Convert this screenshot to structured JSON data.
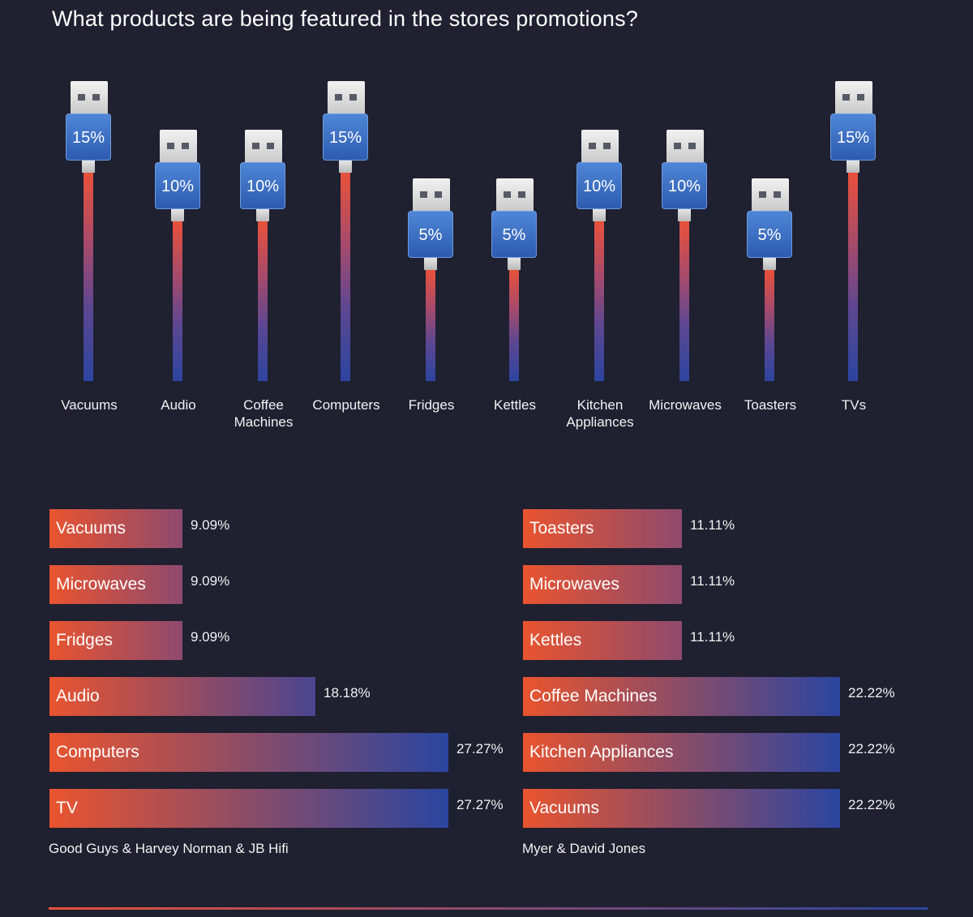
{
  "title": "What products are being featured in the stores promotions?",
  "chart_data": [
    {
      "type": "bar",
      "title": "What products are being featured in the stores promotions?",
      "categories": [
        "Vacuums",
        "Audio",
        "Coffee Machines",
        "Computers",
        "Fridges",
        "Kettles",
        "Kitchen Appliances",
        "Microwaves",
        "Toasters",
        "TVs"
      ],
      "category_labels": [
        [
          "Vacuums"
        ],
        [
          "Audio"
        ],
        [
          "Coffee",
          "Machines"
        ],
        [
          "Computers"
        ],
        [
          "Fridges"
        ],
        [
          "Kettles"
        ],
        [
          "Kitchen",
          "Appliances"
        ],
        [
          "Microwaves"
        ],
        [
          "Toasters"
        ],
        [
          "TVs"
        ]
      ],
      "values": [
        15,
        10,
        10,
        15,
        5,
        5,
        10,
        10,
        5,
        15
      ],
      "value_labels": [
        "15%",
        "10%",
        "10%",
        "15%",
        "5%",
        "5%",
        "10%",
        "10%",
        "5%",
        "15%"
      ],
      "unit": "%",
      "ylim": [
        0,
        15
      ]
    },
    {
      "type": "bar",
      "orientation": "horizontal",
      "store_label": "Good Guys & Harvey Norman & JB Hifi",
      "categories": [
        "Vacuums",
        "Microwaves",
        "Fridges",
        "Audio",
        "Computers",
        "TV"
      ],
      "values": [
        9.09,
        9.09,
        9.09,
        18.18,
        27.27,
        27.27
      ],
      "value_labels": [
        "9.09%",
        "9.09%",
        "9.09%",
        "18.18%",
        "27.27%",
        "27.27%"
      ],
      "xlim": [
        0,
        27.27
      ]
    },
    {
      "type": "bar",
      "orientation": "horizontal",
      "store_label": "Myer & David Jones",
      "categories": [
        "Toasters",
        "Microwaves",
        "Kettles",
        "Coffee Machines",
        "Kitchen Appliances",
        "Vacuums"
      ],
      "values": [
        11.11,
        11.11,
        11.11,
        22.22,
        22.22,
        22.22
      ],
      "value_labels": [
        "11.11%",
        "11.11%",
        "11.11%",
        "22.22%",
        "22.22%",
        "22.22%"
      ],
      "xlim": [
        0,
        22.22
      ]
    }
  ],
  "colors": {
    "background": "#1f2030",
    "bar_start": "#e9542f",
    "bar_end": "#2b45a0",
    "usb_body": "#3f72c8"
  }
}
